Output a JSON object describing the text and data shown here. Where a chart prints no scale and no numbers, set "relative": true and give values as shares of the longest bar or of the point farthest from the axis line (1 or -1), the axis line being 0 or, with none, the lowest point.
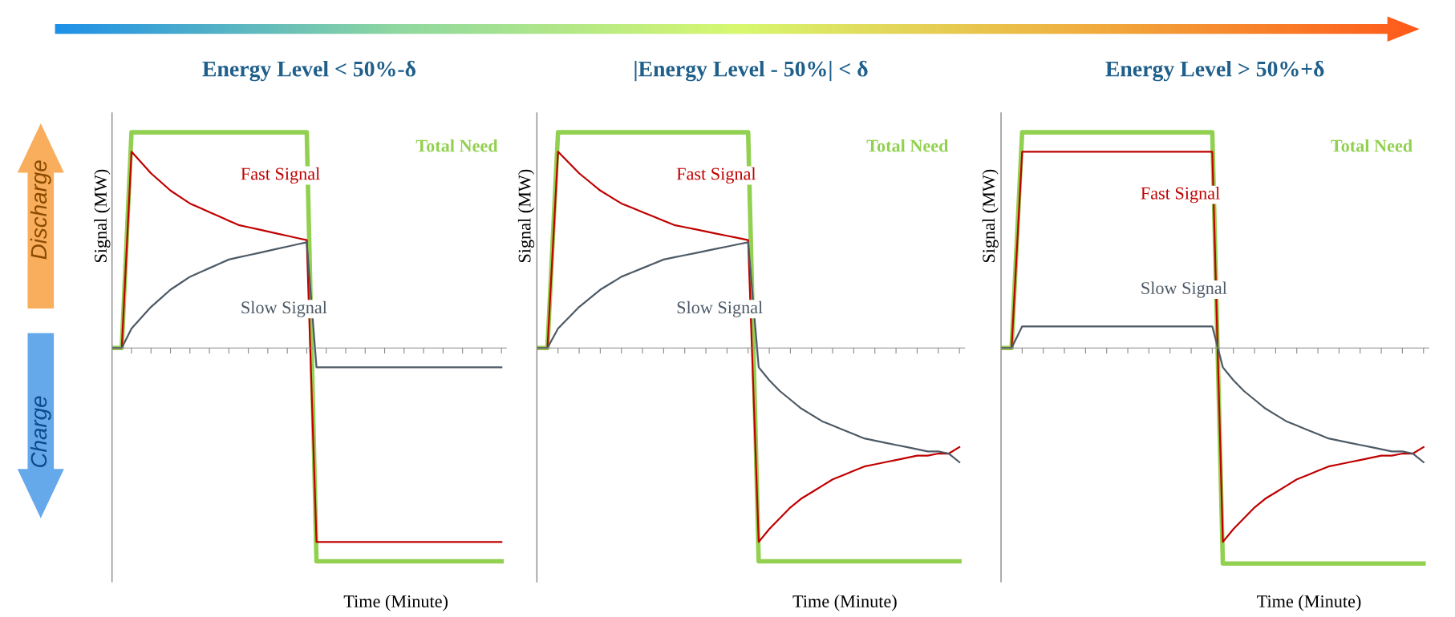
{
  "chart_data": [
    {
      "type": "line",
      "relative": true,
      "title": "Energy Level < 50%-δ",
      "xlabel": "Time (Minute)",
      "ylabel": "Signal (MW)",
      "annotations": [
        "Discharge",
        "Charge"
      ],
      "categories": [
        null,
        null,
        null,
        null,
        null,
        null,
        null,
        null,
        null,
        null,
        null,
        null,
        null,
        null,
        null,
        null,
        null,
        null,
        null,
        null,
        null,
        null,
        null,
        null,
        null,
        null,
        null,
        null,
        null,
        null,
        null,
        null,
        null,
        null,
        null,
        null,
        null,
        null,
        null,
        null,
        null
      ],
      "series": [
        {
          "name": "Total Need",
          "color": "#92d050",
          "values": [
            0,
            0,
            1.0,
            1.0,
            1.0,
            1.0,
            1.0,
            1.0,
            1.0,
            1.0,
            1.0,
            1.0,
            1.0,
            1.0,
            1.0,
            1.0,
            1.0,
            1.0,
            1.0,
            1.0,
            1.0,
            -0.99,
            -0.99,
            -0.99,
            -0.99,
            -0.99,
            -0.99,
            -0.99,
            -0.99,
            -0.99,
            -0.99,
            -0.99,
            -0.99,
            -0.99,
            -0.99,
            -0.99,
            -0.99,
            -0.99,
            -0.99,
            -0.99,
            -0.99
          ]
        },
        {
          "name": "Fast Signal",
          "color": "#c00000",
          "values": [
            0,
            0,
            0.91,
            0.86,
            0.81,
            0.77,
            0.73,
            0.7,
            0.67,
            0.65,
            0.63,
            0.61,
            0.59,
            0.57,
            0.56,
            0.55,
            0.54,
            0.53,
            0.52,
            0.51,
            0.5,
            -0.9,
            -0.9,
            -0.9,
            -0.9,
            -0.9,
            -0.9,
            -0.9,
            -0.9,
            -0.9,
            -0.9,
            -0.9,
            -0.9,
            -0.9,
            -0.9,
            -0.9,
            -0.9,
            -0.9,
            -0.9,
            -0.9,
            -0.9
          ]
        },
        {
          "name": "Slow Signal",
          "color": "#4d5a66",
          "values": [
            0,
            0,
            0.09,
            0.14,
            0.19,
            0.23,
            0.27,
            0.3,
            0.33,
            0.35,
            0.37,
            0.39,
            0.41,
            0.42,
            0.43,
            0.44,
            0.45,
            0.46,
            0.47,
            0.48,
            0.49,
            -0.09,
            -0.09,
            -0.09,
            -0.09,
            -0.09,
            -0.09,
            -0.09,
            -0.09,
            -0.09,
            -0.09,
            -0.09,
            -0.09,
            -0.09,
            -0.09,
            -0.09,
            -0.09,
            -0.09,
            -0.09,
            -0.09,
            -0.09
          ]
        }
      ]
    },
    {
      "type": "line",
      "relative": true,
      "title": "|Energy Level - 50%| < δ",
      "xlabel": "Time (Minute)",
      "ylabel": "Signal (MW)",
      "categories": [
        null,
        null,
        null,
        null,
        null,
        null,
        null,
        null,
        null,
        null,
        null,
        null,
        null,
        null,
        null,
        null,
        null,
        null,
        null,
        null,
        null,
        null,
        null,
        null,
        null,
        null,
        null,
        null,
        null,
        null,
        null,
        null,
        null,
        null,
        null,
        null,
        null,
        null,
        null,
        null,
        null
      ],
      "series": [
        {
          "name": "Total Need",
          "color": "#92d050",
          "values": [
            0,
            0,
            1.0,
            1.0,
            1.0,
            1.0,
            1.0,
            1.0,
            1.0,
            1.0,
            1.0,
            1.0,
            1.0,
            1.0,
            1.0,
            1.0,
            1.0,
            1.0,
            1.0,
            1.0,
            1.0,
            -0.99,
            -0.99,
            -0.99,
            -0.99,
            -0.99,
            -0.99,
            -0.99,
            -0.99,
            -0.99,
            -0.99,
            -0.99,
            -0.99,
            -0.99,
            -0.99,
            -0.99,
            -0.99,
            -0.99,
            -0.99,
            -0.99,
            -0.99
          ]
        },
        {
          "name": "Fast Signal",
          "color": "#c00000",
          "values": [
            0,
            0,
            0.91,
            0.86,
            0.81,
            0.77,
            0.73,
            0.7,
            0.67,
            0.65,
            0.63,
            0.61,
            0.59,
            0.57,
            0.56,
            0.55,
            0.54,
            0.53,
            0.52,
            0.51,
            0.5,
            -0.9,
            -0.84,
            -0.79,
            -0.74,
            -0.7,
            -0.67,
            -0.64,
            -0.61,
            -0.59,
            -0.57,
            -0.55,
            -0.54,
            -0.53,
            -0.52,
            -0.51,
            -0.5,
            -0.5,
            -0.49,
            -0.49,
            -0.46
          ]
        },
        {
          "name": "Slow Signal",
          "color": "#4d5a66",
          "values": [
            0,
            0,
            0.09,
            0.14,
            0.19,
            0.23,
            0.27,
            0.3,
            0.33,
            0.35,
            0.37,
            0.39,
            0.41,
            0.42,
            0.43,
            0.44,
            0.45,
            0.46,
            0.47,
            0.48,
            0.49,
            -0.09,
            -0.15,
            -0.2,
            -0.24,
            -0.28,
            -0.31,
            -0.34,
            -0.36,
            -0.38,
            -0.4,
            -0.42,
            -0.43,
            -0.44,
            -0.45,
            -0.46,
            -0.47,
            -0.48,
            -0.48,
            -0.49,
            -0.53
          ]
        }
      ]
    },
    {
      "type": "line",
      "relative": true,
      "title": "Energy Level > 50%+δ",
      "xlabel": "Time (Minute)",
      "ylabel": "Signal (MW)",
      "categories": [
        null,
        null,
        null,
        null,
        null,
        null,
        null,
        null,
        null,
        null,
        null,
        null,
        null,
        null,
        null,
        null,
        null,
        null,
        null,
        null,
        null,
        null,
        null,
        null,
        null,
        null,
        null,
        null,
        null,
        null,
        null,
        null,
        null,
        null,
        null,
        null,
        null,
        null,
        null,
        null,
        null
      ],
      "series": [
        {
          "name": "Total Need",
          "color": "#92d050",
          "values": [
            0,
            0,
            1.0,
            1.0,
            1.0,
            1.0,
            1.0,
            1.0,
            1.0,
            1.0,
            1.0,
            1.0,
            1.0,
            1.0,
            1.0,
            1.0,
            1.0,
            1.0,
            1.0,
            1.0,
            1.0,
            -1.0,
            -1.0,
            -1.0,
            -1.0,
            -1.0,
            -1.0,
            -1.0,
            -1.0,
            -1.0,
            -1.0,
            -1.0,
            -1.0,
            -1.0,
            -1.0,
            -1.0,
            -1.0,
            -1.0,
            -1.0,
            -1.0,
            -1.0
          ]
        },
        {
          "name": "Fast Signal",
          "color": "#c00000",
          "values": [
            0,
            0,
            0.91,
            0.91,
            0.91,
            0.91,
            0.91,
            0.91,
            0.91,
            0.91,
            0.91,
            0.91,
            0.91,
            0.91,
            0.91,
            0.91,
            0.91,
            0.91,
            0.91,
            0.91,
            0.91,
            -0.9,
            -0.84,
            -0.79,
            -0.74,
            -0.7,
            -0.67,
            -0.64,
            -0.61,
            -0.59,
            -0.57,
            -0.55,
            -0.54,
            -0.53,
            -0.52,
            -0.51,
            -0.5,
            -0.5,
            -0.49,
            -0.49,
            -0.46
          ]
        },
        {
          "name": "Slow Signal",
          "color": "#4d5a66",
          "values": [
            0,
            0,
            0.1,
            0.1,
            0.1,
            0.1,
            0.1,
            0.1,
            0.1,
            0.1,
            0.1,
            0.1,
            0.1,
            0.1,
            0.1,
            0.1,
            0.1,
            0.1,
            0.1,
            0.1,
            0.1,
            -0.09,
            -0.15,
            -0.2,
            -0.24,
            -0.28,
            -0.31,
            -0.34,
            -0.36,
            -0.38,
            -0.4,
            -0.42,
            -0.43,
            -0.44,
            -0.45,
            -0.46,
            -0.47,
            -0.48,
            -0.48,
            -0.49,
            -0.53
          ]
        }
      ]
    }
  ]
}
